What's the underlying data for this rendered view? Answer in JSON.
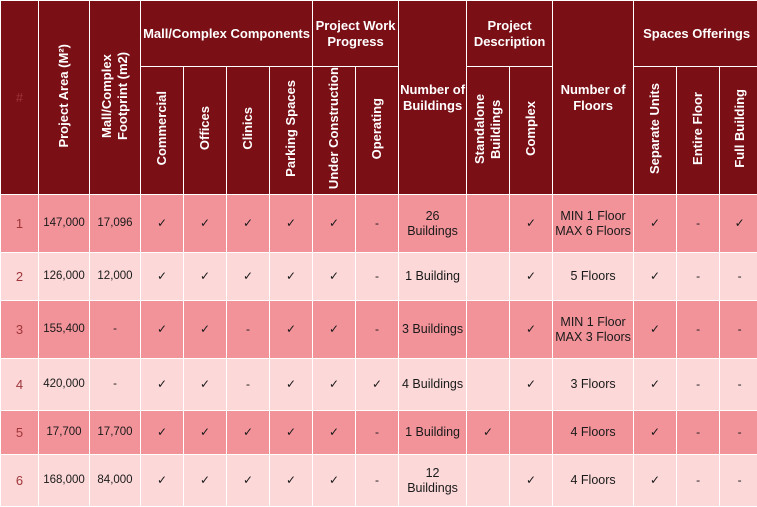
{
  "headers": {
    "index": "#",
    "project_area": "Project Area (M²)",
    "footprint": "Mall/Complex Footprint (m2)",
    "components": "Mall/Complex Components",
    "commercial": "Commercial",
    "offices": "Offices",
    "clinics": "Clinics",
    "parking": "Parking Spaces",
    "progress": "Project Work Progress",
    "under_construction": "Under Construction",
    "operating": "Operating",
    "num_buildings": "Number of Buildings",
    "description": "Project Description",
    "standalone": "Standalone Buildings",
    "complex": "Complex",
    "num_floors": "Number of Floors",
    "spaces": "Spaces Offerings",
    "separate_units": "Separate Units",
    "entire_floor": "Entire Floor",
    "full_building": "Full Building"
  },
  "rows": [
    {
      "n": "1",
      "area": "147,000",
      "footprint": "17,096",
      "commercial": "✓",
      "offices": "✓",
      "clinics": "✓",
      "parking": "✓",
      "under": "✓",
      "operating": "-",
      "buildings": "26 Buildings",
      "standalone": "",
      "complex": "✓",
      "floors": "MIN 1 Floor MAX 6 Floors",
      "separate": "✓",
      "entire": "-",
      "full": "✓"
    },
    {
      "n": "2",
      "area": "126,000",
      "footprint": "12,000",
      "commercial": "✓",
      "offices": "✓",
      "clinics": "✓",
      "parking": "✓",
      "under": "✓",
      "operating": "-",
      "buildings": "1 Building",
      "standalone": "",
      "complex": "✓",
      "floors": "5 Floors",
      "separate": "✓",
      "entire": "-",
      "full": "-"
    },
    {
      "n": "3",
      "area": "155,400",
      "footprint": "-",
      "commercial": "✓",
      "offices": "✓",
      "clinics": "-",
      "parking": "✓",
      "under": "✓",
      "operating": "-",
      "buildings": "3 Buildings",
      "standalone": "",
      "complex": "✓",
      "floors": "MIN 1 Floor MAX 3 Floors",
      "separate": "✓",
      "entire": "-",
      "full": "-"
    },
    {
      "n": "4",
      "area": "420,000",
      "footprint": "-",
      "commercial": "✓",
      "offices": "✓",
      "clinics": "-",
      "parking": "✓",
      "under": "✓",
      "operating": "✓",
      "buildings": "4 Buildings",
      "standalone": "",
      "complex": "✓",
      "floors": "3 Floors",
      "separate": "✓",
      "entire": "-",
      "full": "-"
    },
    {
      "n": "5",
      "area": "17,700",
      "footprint": "17,700",
      "commercial": "✓",
      "offices": "✓",
      "clinics": "✓",
      "parking": "✓",
      "under": "✓",
      "operating": "-",
      "buildings": "1 Building",
      "standalone": "✓",
      "complex": "",
      "floors": "4 Floors",
      "separate": "✓",
      "entire": "-",
      "full": "-"
    },
    {
      "n": "6",
      "area": "168,000",
      "footprint": "84,000",
      "commercial": "✓",
      "offices": "✓",
      "clinics": "✓",
      "parking": "✓",
      "under": "✓",
      "operating": "-",
      "buildings": "12 Buildings",
      "standalone": "",
      "complex": "✓",
      "floors": "4 Floors",
      "separate": "✓",
      "entire": "-",
      "full": "-"
    }
  ],
  "colors": {
    "header_bg": "#7a0f16",
    "row_odd": "#f2939a",
    "row_even": "#fcd8d8"
  }
}
